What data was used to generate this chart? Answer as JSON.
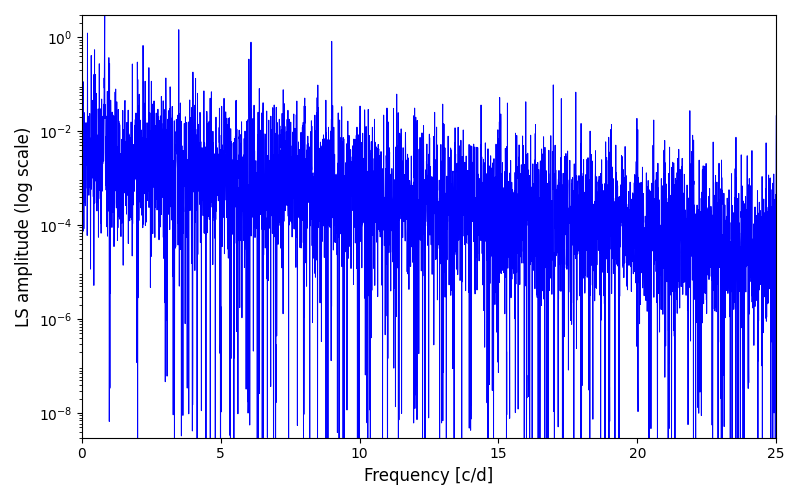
{
  "xlabel": "Frequency [c/d]",
  "ylabel": "LS amplitude (log scale)",
  "line_color": "#0000ff",
  "line_width": 0.7,
  "xlim": [
    0,
    25
  ],
  "ylim_low": 3e-09,
  "ylim_high": 3.0,
  "figsize": [
    8.0,
    5.0
  ],
  "dpi": 100,
  "freq_max": 25.0,
  "n_points": 5000,
  "seed": 17,
  "background_color": "#ffffff",
  "yticks": [
    1e-08,
    1e-06,
    0.0001,
    0.01,
    1.0
  ],
  "xticks": [
    0,
    5,
    10,
    15,
    20,
    25
  ]
}
